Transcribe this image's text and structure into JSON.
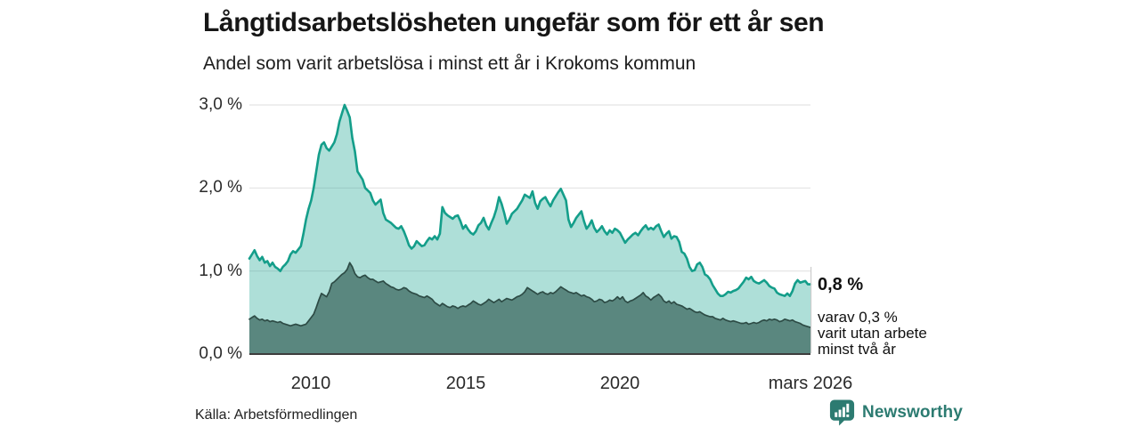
{
  "header": {
    "title": "Långtidsarbetslösheten ungefär som för ett år sen",
    "subtitle": "Andel som varit arbetslösa i minst ett år i Krokoms kommun"
  },
  "chart_data": {
    "type": "area",
    "title": "Långtidsarbetslösheten ungefär som för ett år sen",
    "subtitle": "Andel som varit arbetslösa i minst ett år i Krokoms kommun",
    "unit": "%",
    "frequency": "monthly",
    "x_start": "2008-01",
    "x_end": "2026-03",
    "ylim": [
      0,
      3
    ],
    "grid": true,
    "yticks": [
      {
        "value": 3.0,
        "label": "3,0 %"
      },
      {
        "value": 2.0,
        "label": "2,0 %"
      },
      {
        "value": 1.0,
        "label": "1,0 %"
      },
      {
        "value": 0.0,
        "label": "0,0 %"
      }
    ],
    "xticks": [
      {
        "label": "2010"
      },
      {
        "label": "2015"
      },
      {
        "label": "2020"
      },
      {
        "label": "mars 2026"
      }
    ],
    "series": [
      {
        "name": "Andel som varit arbetslösa minst ett år",
        "line_color": "#149e8a",
        "fill_color": "#12a08c",
        "fill_opacity": 0.34,
        "last_value": 0.8,
        "values": [
          1.15,
          1.2,
          1.25,
          1.18,
          1.13,
          1.17,
          1.1,
          1.12,
          1.06,
          1.1,
          1.05,
          1.03,
          1.0,
          1.05,
          1.08,
          1.12,
          1.2,
          1.24,
          1.22,
          1.26,
          1.3,
          1.45,
          1.62,
          1.75,
          1.85,
          2.0,
          2.2,
          2.4,
          2.52,
          2.55,
          2.48,
          2.45,
          2.5,
          2.55,
          2.65,
          2.8,
          2.9,
          3.0,
          2.93,
          2.85,
          2.6,
          2.44,
          2.2,
          2.15,
          2.1,
          2.0,
          1.97,
          1.94,
          1.85,
          1.8,
          1.83,
          1.86,
          1.7,
          1.62,
          1.6,
          1.58,
          1.55,
          1.52,
          1.51,
          1.54,
          1.48,
          1.4,
          1.31,
          1.27,
          1.3,
          1.36,
          1.33,
          1.3,
          1.31,
          1.36,
          1.4,
          1.38,
          1.42,
          1.38,
          1.45,
          1.77,
          1.7,
          1.67,
          1.65,
          1.63,
          1.66,
          1.67,
          1.6,
          1.51,
          1.55,
          1.5,
          1.46,
          1.44,
          1.48,
          1.55,
          1.58,
          1.64,
          1.55,
          1.5,
          1.58,
          1.65,
          1.75,
          1.89,
          1.81,
          1.7,
          1.57,
          1.62,
          1.69,
          1.72,
          1.75,
          1.8,
          1.85,
          1.92,
          1.9,
          1.88,
          1.96,
          1.82,
          1.75,
          1.84,
          1.87,
          1.89,
          1.83,
          1.78,
          1.85,
          1.9,
          1.95,
          1.99,
          1.92,
          1.85,
          1.62,
          1.53,
          1.58,
          1.64,
          1.68,
          1.72,
          1.6,
          1.51,
          1.55,
          1.61,
          1.52,
          1.47,
          1.5,
          1.54,
          1.48,
          1.44,
          1.49,
          1.46,
          1.51,
          1.49,
          1.46,
          1.4,
          1.34,
          1.38,
          1.41,
          1.44,
          1.46,
          1.43,
          1.48,
          1.52,
          1.55,
          1.5,
          1.52,
          1.5,
          1.54,
          1.56,
          1.48,
          1.41,
          1.45,
          1.48,
          1.39,
          1.42,
          1.41,
          1.35,
          1.23,
          1.21,
          1.15,
          1.05,
          1.0,
          1.01,
          1.08,
          1.1,
          1.05,
          0.96,
          0.94,
          0.9,
          0.83,
          0.78,
          0.73,
          0.7,
          0.7,
          0.72,
          0.75,
          0.74,
          0.76,
          0.77,
          0.79,
          0.83,
          0.87,
          0.92,
          0.9,
          0.93,
          0.88,
          0.86,
          0.85,
          0.87,
          0.89,
          0.86,
          0.82,
          0.8,
          0.79,
          0.74,
          0.72,
          0.71,
          0.7,
          0.73,
          0.7,
          0.76,
          0.85,
          0.89,
          0.86,
          0.87,
          0.88,
          0.84,
          0.84
        ]
      },
      {
        "name": "varav varit utan arbete minst två år",
        "line_color": "#2d4b45",
        "fill_color": "#36615a",
        "fill_opacity": 0.7,
        "last_value": 0.3,
        "values": [
          0.42,
          0.44,
          0.46,
          0.43,
          0.41,
          0.42,
          0.4,
          0.41,
          0.39,
          0.4,
          0.39,
          0.38,
          0.39,
          0.37,
          0.36,
          0.35,
          0.34,
          0.35,
          0.36,
          0.35,
          0.34,
          0.35,
          0.36,
          0.4,
          0.44,
          0.48,
          0.56,
          0.65,
          0.73,
          0.71,
          0.69,
          0.75,
          0.85,
          0.87,
          0.9,
          0.93,
          0.96,
          0.98,
          1.02,
          1.1,
          1.05,
          0.97,
          0.93,
          0.92,
          0.94,
          0.95,
          0.92,
          0.9,
          0.9,
          0.88,
          0.86,
          0.87,
          0.88,
          0.85,
          0.83,
          0.81,
          0.8,
          0.78,
          0.77,
          0.78,
          0.8,
          0.79,
          0.76,
          0.74,
          0.73,
          0.72,
          0.7,
          0.69,
          0.68,
          0.7,
          0.68,
          0.66,
          0.62,
          0.6,
          0.58,
          0.61,
          0.59,
          0.57,
          0.56,
          0.58,
          0.57,
          0.55,
          0.57,
          0.58,
          0.57,
          0.59,
          0.61,
          0.64,
          0.62,
          0.6,
          0.59,
          0.61,
          0.63,
          0.66,
          0.64,
          0.62,
          0.64,
          0.66,
          0.63,
          0.65,
          0.67,
          0.66,
          0.65,
          0.67,
          0.69,
          0.7,
          0.72,
          0.75,
          0.8,
          0.78,
          0.76,
          0.74,
          0.72,
          0.74,
          0.75,
          0.73,
          0.72,
          0.74,
          0.73,
          0.75,
          0.78,
          0.81,
          0.79,
          0.77,
          0.75,
          0.74,
          0.73,
          0.74,
          0.72,
          0.7,
          0.71,
          0.69,
          0.68,
          0.66,
          0.63,
          0.64,
          0.66,
          0.65,
          0.62,
          0.63,
          0.65,
          0.64,
          0.66,
          0.69,
          0.66,
          0.69,
          0.64,
          0.62,
          0.64,
          0.65,
          0.67,
          0.69,
          0.71,
          0.74,
          0.7,
          0.68,
          0.65,
          0.68,
          0.7,
          0.72,
          0.69,
          0.64,
          0.62,
          0.64,
          0.61,
          0.63,
          0.6,
          0.59,
          0.58,
          0.56,
          0.54,
          0.55,
          0.53,
          0.51,
          0.5,
          0.51,
          0.49,
          0.47,
          0.46,
          0.45,
          0.45,
          0.43,
          0.42,
          0.41,
          0.43,
          0.41,
          0.4,
          0.39,
          0.4,
          0.39,
          0.38,
          0.37,
          0.37,
          0.38,
          0.36,
          0.37,
          0.38,
          0.37,
          0.38,
          0.4,
          0.41,
          0.4,
          0.42,
          0.41,
          0.42,
          0.41,
          0.39,
          0.4,
          0.42,
          0.41,
          0.4,
          0.41,
          0.39,
          0.38,
          0.37,
          0.35,
          0.34,
          0.33,
          0.32
        ]
      }
    ]
  },
  "annotations": {
    "total_value": "0,8 %",
    "two_year_lines": [
      "varav 0,3 %",
      "varit utan arbete",
      "minst två år"
    ]
  },
  "footer": {
    "source": "Källa: Arbetsförmedlingen",
    "brand": "Newsworthy",
    "brand_color": "#2c7b71"
  }
}
